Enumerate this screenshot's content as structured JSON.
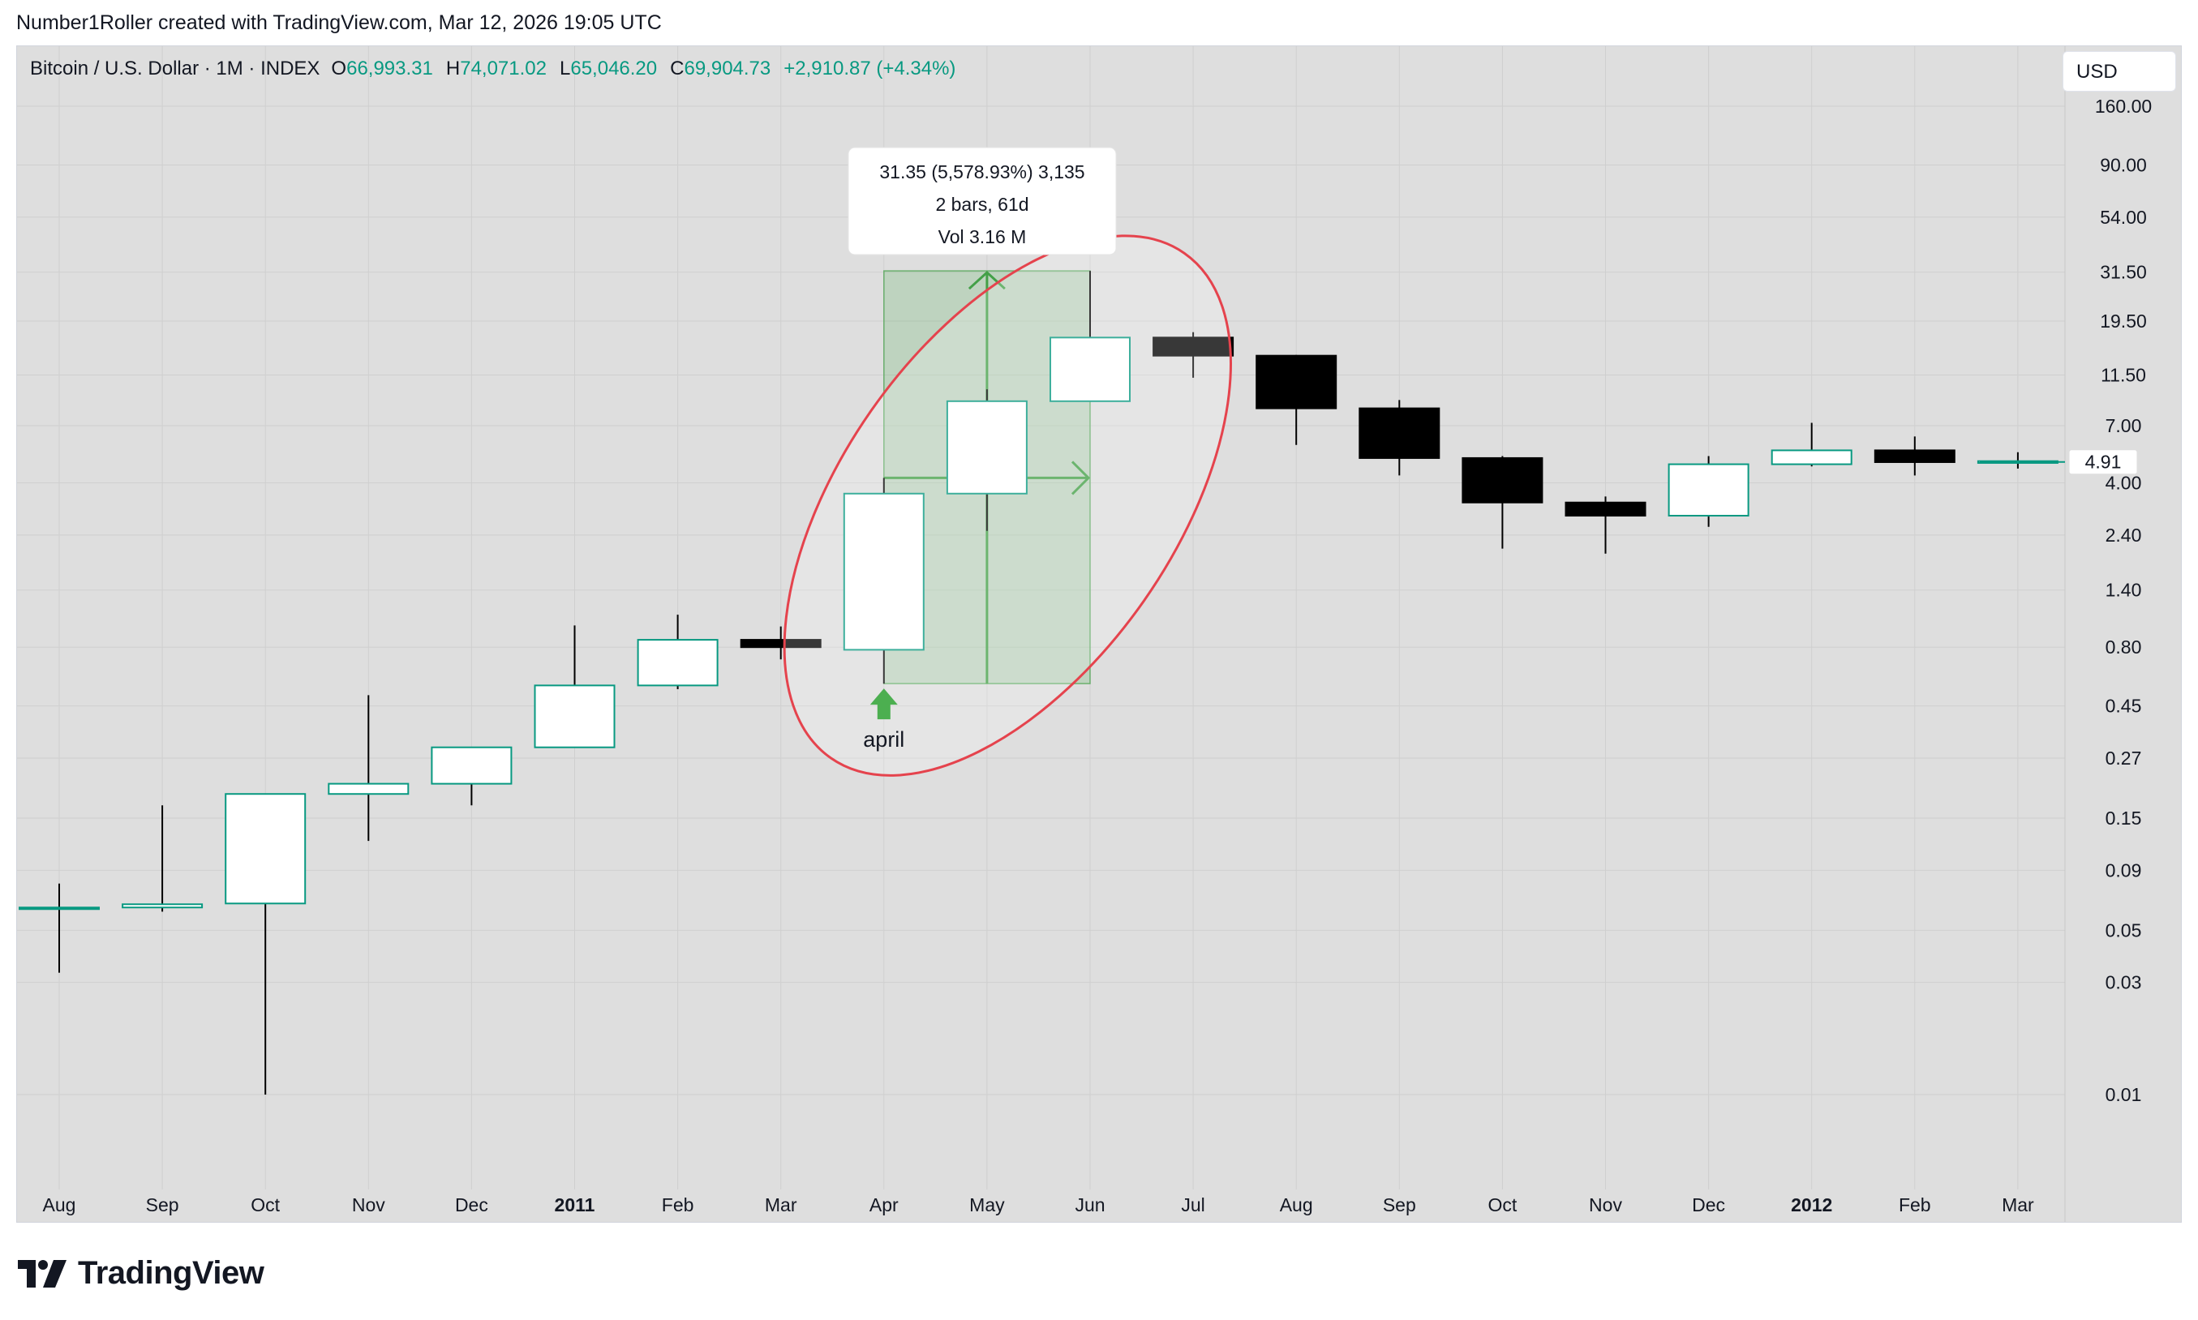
{
  "attribution": "Number1Roller created with TradingView.com, Mar 12, 2026 19:05 UTC",
  "brand": {
    "name": "TradingView",
    "logo_icon": "tradingview-logo-icon"
  },
  "legend": {
    "symbol": "Bitcoin / U.S. Dollar · 1M · INDEX",
    "open_label": "O",
    "open": "66,993.31",
    "high_label": "H",
    "high": "74,071.02",
    "low_label": "L",
    "low": "65,046.20",
    "close_label": "C",
    "close": "69,904.73",
    "change": "+2,910.87 (+4.34%)"
  },
  "currency": "USD",
  "colors": {
    "background": "#dedede",
    "up_body": "#ffffff",
    "up_border": "#089981",
    "down_body": "#000000",
    "measure_fill": "#4caf50",
    "measure_stroke": "#43a047",
    "ellipse_stroke": "#e5434d",
    "arrow": "#4caf50"
  },
  "chart_data": {
    "type": "candlestick",
    "scale": "log",
    "ylim": [
      0.006,
      220
    ],
    "y_ticks": [
      "160.00",
      "90.00",
      "54.00",
      "31.50",
      "19.50",
      "11.50",
      "7.00",
      "4.00",
      "2.40",
      "1.40",
      "0.80",
      "0.45",
      "0.27",
      "0.15",
      "0.09",
      "0.05",
      "0.03",
      "0.01"
    ],
    "x_ticks": [
      {
        "label": "Aug",
        "bold": false
      },
      {
        "label": "Sep",
        "bold": false
      },
      {
        "label": "Oct",
        "bold": false
      },
      {
        "label": "Nov",
        "bold": false
      },
      {
        "label": "Dec",
        "bold": false
      },
      {
        "label": "2011",
        "bold": true
      },
      {
        "label": "Feb",
        "bold": false
      },
      {
        "label": "Mar",
        "bold": false
      },
      {
        "label": "Apr",
        "bold": false
      },
      {
        "label": "May",
        "bold": false
      },
      {
        "label": "Jun",
        "bold": false
      },
      {
        "label": "Jul",
        "bold": false
      },
      {
        "label": "Aug",
        "bold": false
      },
      {
        "label": "Sep",
        "bold": false
      },
      {
        "label": "Oct",
        "bold": false
      },
      {
        "label": "Nov",
        "bold": false
      },
      {
        "label": "Dec",
        "bold": false
      },
      {
        "label": "2012",
        "bold": true
      },
      {
        "label": "Feb",
        "bold": false
      },
      {
        "label": "Mar",
        "bold": false
      }
    ],
    "candles": [
      {
        "month": "2010-08",
        "o": 0.062,
        "h": 0.079,
        "l": 0.033,
        "c": 0.062
      },
      {
        "month": "2010-09",
        "o": 0.063,
        "h": 0.17,
        "l": 0.06,
        "c": 0.064
      },
      {
        "month": "2010-10",
        "o": 0.065,
        "h": 0.19,
        "l": 0.01,
        "c": 0.19
      },
      {
        "month": "2010-11",
        "o": 0.19,
        "h": 0.5,
        "l": 0.12,
        "c": 0.21
      },
      {
        "month": "2010-12",
        "o": 0.21,
        "h": 0.3,
        "l": 0.17,
        "c": 0.3
      },
      {
        "month": "2011-01",
        "o": 0.3,
        "h": 0.99,
        "l": 0.3,
        "c": 0.55
      },
      {
        "month": "2011-02",
        "o": 0.55,
        "h": 1.1,
        "l": 0.53,
        "c": 0.86
      },
      {
        "month": "2011-03",
        "o": 0.86,
        "h": 0.98,
        "l": 0.71,
        "c": 0.8
      },
      {
        "month": "2011-04",
        "o": 0.78,
        "h": 4.2,
        "l": 0.56,
        "c": 3.6
      },
      {
        "month": "2011-05",
        "o": 3.6,
        "h": 10,
        "l": 2.5,
        "c": 8.9
      },
      {
        "month": "2011-06",
        "o": 8.9,
        "h": 31.9,
        "l": 8.9,
        "c": 16.6
      },
      {
        "month": "2011-07",
        "o": 16.6,
        "h": 17.5,
        "l": 11.2,
        "c": 13.9
      },
      {
        "month": "2011-08",
        "o": 13.9,
        "h": 14,
        "l": 5.8,
        "c": 8.3
      },
      {
        "month": "2011-09",
        "o": 8.3,
        "h": 9,
        "l": 4.3,
        "c": 5.1
      },
      {
        "month": "2011-10",
        "o": 5.1,
        "h": 5.2,
        "l": 2.1,
        "c": 3.3
      },
      {
        "month": "2011-11",
        "o": 3.3,
        "h": 3.5,
        "l": 2,
        "c": 2.9
      },
      {
        "month": "2011-12",
        "o": 2.9,
        "h": 5.2,
        "l": 2.6,
        "c": 4.8
      },
      {
        "month": "2012-01",
        "o": 4.8,
        "h": 7.2,
        "l": 4.7,
        "c": 5.5
      },
      {
        "month": "2012-02",
        "o": 5.5,
        "h": 6.3,
        "l": 4.3,
        "c": 4.9
      },
      {
        "month": "2012-03",
        "o": 4.9,
        "h": 5.4,
        "l": 4.6,
        "c": 4.91
      }
    ],
    "last_price_label": "4.91",
    "measure": {
      "from_index": 8,
      "to_index": 10,
      "low": 0.56,
      "high": 31.9,
      "mid": 4.2,
      "line1": "31.35 (5,578.93%) 3,135",
      "line2": "2 bars, 61d",
      "line3": "Vol 3.16 M"
    },
    "highlight_ellipse": {
      "center_index": 9.2,
      "center_value": 3.2,
      "tilt_deg": -55,
      "shape": "rotated ellipse"
    },
    "annotation": {
      "text": "april",
      "index": 8,
      "value": 0.56,
      "icon": "arrow-up-icon"
    }
  }
}
